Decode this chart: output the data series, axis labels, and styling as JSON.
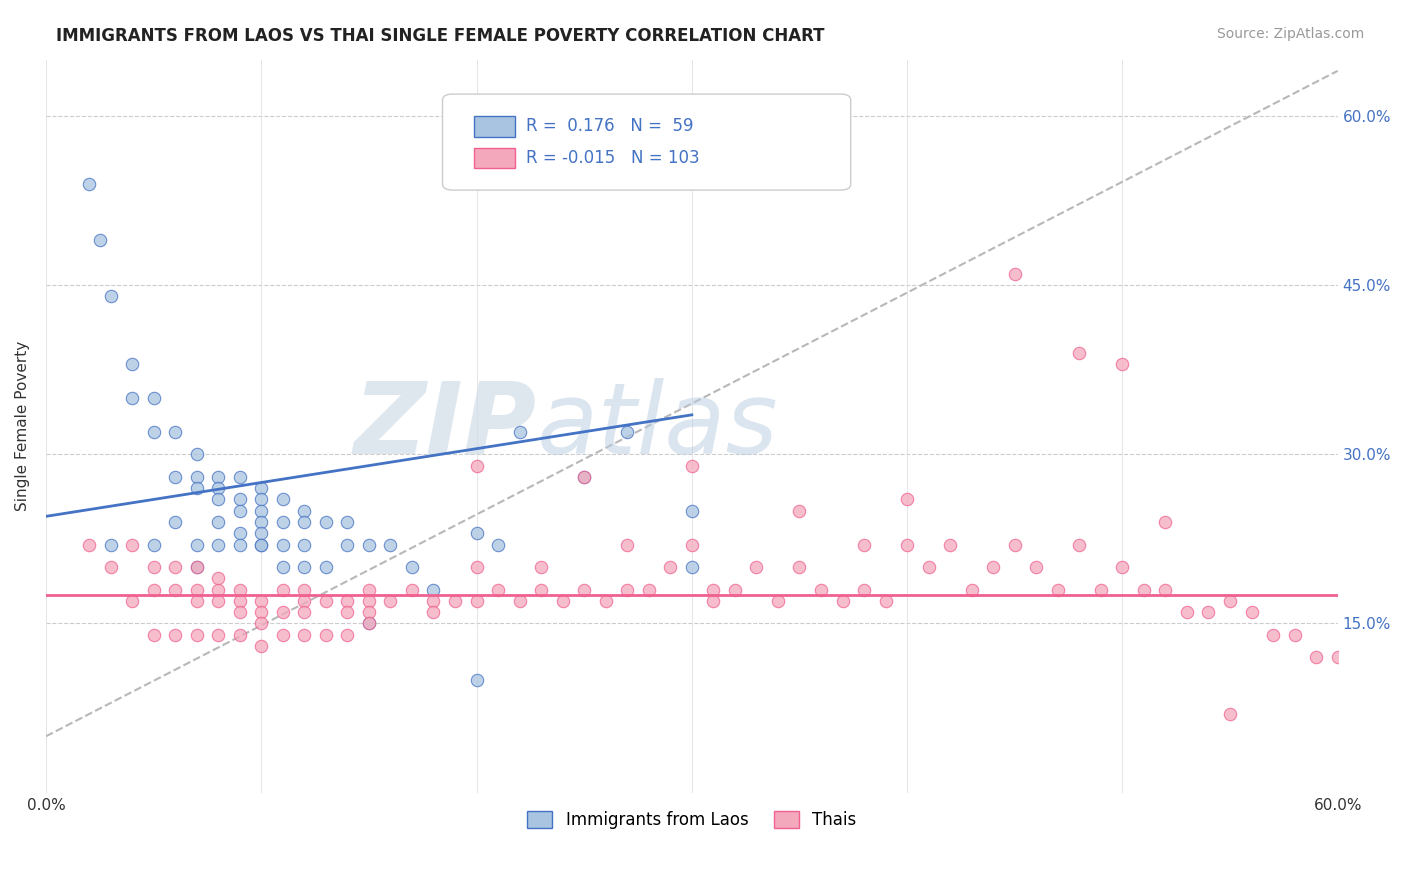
{
  "title": "IMMIGRANTS FROM LAOS VS THAI SINGLE FEMALE POVERTY CORRELATION CHART",
  "source": "Source: ZipAtlas.com",
  "ylabel": "Single Female Poverty",
  "xmin": 0.0,
  "xmax": 0.6,
  "ymin": 0.0,
  "ymax": 0.65,
  "ytick_vals": [
    0.15,
    0.3,
    0.45,
    0.6
  ],
  "ytick_labels": [
    "15.0%",
    "30.0%",
    "45.0%",
    "60.0%"
  ],
  "xtick_vals": [
    0.0,
    0.1,
    0.2,
    0.3,
    0.4,
    0.5,
    0.6
  ],
  "xtick_labels": [
    "0.0%",
    "",
    "",
    "",
    "",
    "",
    "60.0%"
  ],
  "legend_labels": [
    "Immigrants from Laos",
    "Thais"
  ],
  "blue_R": 0.176,
  "blue_N": 59,
  "pink_R": -0.015,
  "pink_N": 103,
  "blue_color": "#a8c4e0",
  "pink_color": "#f4a8bc",
  "blue_line_color": "#4472c4",
  "pink_line_color": "#f06090",
  "trendline_gray": "#b8b8b8",
  "watermark_zip": "ZIP",
  "watermark_atlas": "atlas",
  "blue_line_x0": 0.0,
  "blue_line_x1": 0.3,
  "blue_line_y0": 0.245,
  "blue_line_y1": 0.335,
  "pink_line_y": 0.175,
  "gray_line_x0": 0.0,
  "gray_line_x1": 0.6,
  "gray_line_y0": 0.05,
  "gray_line_y1": 0.64,
  "blue_scatter_x": [
    0.02,
    0.025,
    0.03,
    0.04,
    0.04,
    0.05,
    0.05,
    0.06,
    0.06,
    0.07,
    0.07,
    0.07,
    0.08,
    0.08,
    0.08,
    0.08,
    0.09,
    0.09,
    0.09,
    0.09,
    0.1,
    0.1,
    0.1,
    0.1,
    0.1,
    0.1,
    0.11,
    0.11,
    0.11,
    0.12,
    0.12,
    0.12,
    0.13,
    0.14,
    0.14,
    0.15,
    0.16,
    0.17,
    0.18,
    0.2,
    0.21,
    0.22,
    0.25,
    0.27,
    0.3,
    0.3,
    0.03,
    0.05,
    0.06,
    0.07,
    0.07,
    0.08,
    0.09,
    0.1,
    0.11,
    0.12,
    0.13,
    0.15,
    0.2
  ],
  "blue_scatter_y": [
    0.54,
    0.49,
    0.44,
    0.38,
    0.35,
    0.35,
    0.32,
    0.32,
    0.28,
    0.3,
    0.28,
    0.27,
    0.28,
    0.27,
    0.26,
    0.24,
    0.28,
    0.26,
    0.25,
    0.23,
    0.27,
    0.26,
    0.25,
    0.24,
    0.23,
    0.22,
    0.26,
    0.24,
    0.22,
    0.25,
    0.24,
    0.22,
    0.24,
    0.24,
    0.22,
    0.22,
    0.22,
    0.2,
    0.18,
    0.23,
    0.22,
    0.32,
    0.28,
    0.32,
    0.25,
    0.2,
    0.22,
    0.22,
    0.24,
    0.22,
    0.2,
    0.22,
    0.22,
    0.22,
    0.2,
    0.2,
    0.2,
    0.15,
    0.1
  ],
  "pink_scatter_x": [
    0.02,
    0.03,
    0.04,
    0.04,
    0.05,
    0.05,
    0.06,
    0.06,
    0.07,
    0.07,
    0.07,
    0.08,
    0.08,
    0.08,
    0.09,
    0.09,
    0.09,
    0.1,
    0.1,
    0.1,
    0.11,
    0.11,
    0.12,
    0.12,
    0.12,
    0.13,
    0.14,
    0.14,
    0.15,
    0.15,
    0.15,
    0.16,
    0.17,
    0.18,
    0.18,
    0.19,
    0.2,
    0.2,
    0.21,
    0.22,
    0.23,
    0.23,
    0.24,
    0.25,
    0.26,
    0.27,
    0.27,
    0.28,
    0.29,
    0.3,
    0.31,
    0.31,
    0.32,
    0.33,
    0.34,
    0.35,
    0.36,
    0.37,
    0.38,
    0.38,
    0.39,
    0.4,
    0.41,
    0.42,
    0.43,
    0.44,
    0.45,
    0.46,
    0.47,
    0.48,
    0.49,
    0.5,
    0.51,
    0.52,
    0.53,
    0.54,
    0.55,
    0.56,
    0.57,
    0.58,
    0.59,
    0.6,
    0.45,
    0.3,
    0.35,
    0.4,
    0.25,
    0.2,
    0.5,
    0.55,
    0.48,
    0.52,
    0.05,
    0.06,
    0.07,
    0.08,
    0.09,
    0.1,
    0.11,
    0.12,
    0.13,
    0.14,
    0.15
  ],
  "pink_scatter_y": [
    0.22,
    0.2,
    0.22,
    0.17,
    0.2,
    0.18,
    0.2,
    0.18,
    0.2,
    0.18,
    0.17,
    0.19,
    0.18,
    0.17,
    0.18,
    0.17,
    0.16,
    0.17,
    0.16,
    0.15,
    0.18,
    0.16,
    0.18,
    0.17,
    0.16,
    0.17,
    0.17,
    0.16,
    0.18,
    0.17,
    0.16,
    0.17,
    0.18,
    0.17,
    0.16,
    0.17,
    0.2,
    0.17,
    0.18,
    0.17,
    0.2,
    0.18,
    0.17,
    0.18,
    0.17,
    0.22,
    0.18,
    0.18,
    0.2,
    0.22,
    0.18,
    0.17,
    0.18,
    0.2,
    0.17,
    0.2,
    0.18,
    0.17,
    0.22,
    0.18,
    0.17,
    0.22,
    0.2,
    0.22,
    0.18,
    0.2,
    0.22,
    0.2,
    0.18,
    0.22,
    0.18,
    0.2,
    0.18,
    0.18,
    0.16,
    0.16,
    0.17,
    0.16,
    0.14,
    0.14,
    0.12,
    0.12,
    0.46,
    0.29,
    0.25,
    0.26,
    0.28,
    0.29,
    0.38,
    0.07,
    0.39,
    0.24,
    0.14,
    0.14,
    0.14,
    0.14,
    0.14,
    0.13,
    0.14,
    0.14,
    0.14,
    0.14,
    0.15
  ]
}
